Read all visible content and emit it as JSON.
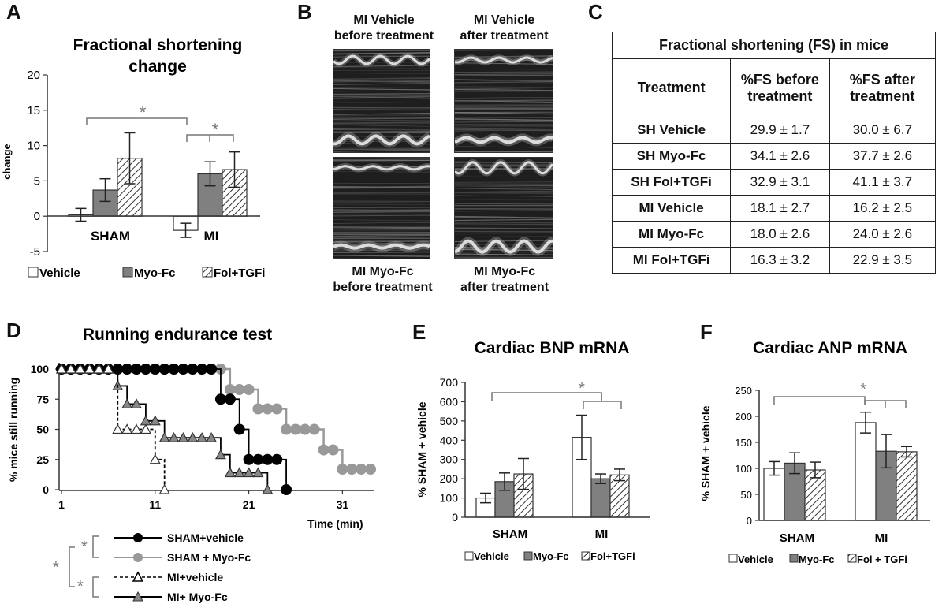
{
  "panel_letters": {
    "a": "A",
    "b": "B",
    "c": "C",
    "d": "D",
    "e": "E",
    "f": "F"
  },
  "panel_a": {
    "title_line1": "Fractional shortening",
    "title_line2": "change",
    "ylabel": "change",
    "yticks": [
      "20",
      "15",
      "10",
      "5",
      "0",
      "-5"
    ],
    "group_labels": [
      "SHAM",
      "MI"
    ],
    "legend": [
      "Vehicle",
      "Myo-Fc",
      "Fol+TGFi"
    ],
    "sig": [
      "*",
      "*"
    ]
  },
  "panel_b": {
    "captions": {
      "tl_1": "MI Vehicle",
      "tl_2": "before treatment",
      "tr_1": "MI Vehicle",
      "tr_2": "after treatment",
      "bl_1": "MI Myo-Fc",
      "bl_2": "before treatment",
      "br_1": "MI Myo-Fc",
      "br_2": "after treatment"
    }
  },
  "panel_c": {
    "title": "Fractional shortening (FS) in mice",
    "headers": [
      "Treatment",
      "%FS before treatment",
      "%FS after treatment"
    ],
    "rows": [
      [
        "SH Vehicle",
        "29.9 ± 1.7",
        "30.0 ± 6.7"
      ],
      [
        "SH Myo-Fc",
        "34.1 ± 2.6",
        "37.7 ± 2.6"
      ],
      [
        "SH Fol+TGFi",
        "32.9 ± 3.1",
        "41.1 ± 3.7"
      ],
      [
        "MI Vehicle",
        "18.1 ± 2.7",
        "16.2 ± 2.5"
      ],
      [
        "MI Myo-Fc",
        "18.0 ± 2.6",
        "24.0 ± 2.6"
      ],
      [
        "MI Fol+TGFi",
        "16.3 ± 3.2",
        "22.9 ± 3.5"
      ]
    ]
  },
  "panel_d": {
    "title": "Running endurance test",
    "ylabel": "% mice still running",
    "xlabel": "Time (min)",
    "yticks": [
      "100",
      "75",
      "50",
      "25",
      "0"
    ],
    "xticks": [
      "1",
      "11",
      "21",
      "31"
    ],
    "legend": [
      "SHAM+vehicle",
      "SHAM + Myo-Fc",
      "MI+vehicle",
      "MI+ Myo-Fc"
    ],
    "sig": [
      "*",
      "*",
      "*"
    ]
  },
  "panel_e": {
    "title": "Cardiac BNP mRNA",
    "ylabel": "% SHAM + vehicle",
    "yticks": [
      "700",
      "600",
      "500",
      "400",
      "300",
      "200",
      "100",
      "0"
    ],
    "group_labels": [
      "SHAM",
      "MI"
    ],
    "legend": [
      "Vehicle",
      "Myo-Fc",
      "Fol+TGFi"
    ],
    "sig": [
      "*"
    ]
  },
  "panel_f": {
    "title": "Cardiac ANP mRNA",
    "ylabel": "% SHAM + vehicle",
    "yticks": [
      "250",
      "200",
      "150",
      "100",
      "50",
      "0"
    ],
    "group_labels": [
      "SHAM",
      "MI"
    ],
    "legend": [
      "Vehicle",
      "Myo-Fc",
      "Fol + TGFi"
    ],
    "sig": [
      "*"
    ]
  },
  "colors": {
    "vehicle": "#ffffff",
    "myofc": "#808080",
    "hatch": "#333333",
    "sham_vehicle": "#000000",
    "sham_myofc": "#999999",
    "mi_line": "#555555"
  },
  "chart_data": [
    {
      "type": "bar",
      "title": "Fractional shortening change",
      "ylabel": "change",
      "categories": [
        "SHAM",
        "MI"
      ],
      "ylim": [
        -5,
        20
      ],
      "series": [
        {
          "name": "Vehicle",
          "values": [
            0.2,
            -2.0
          ],
          "errors": [
            0.9,
            1.0
          ]
        },
        {
          "name": "Myo-Fc",
          "values": [
            3.7,
            6.0
          ],
          "errors": [
            1.6,
            1.7
          ]
        },
        {
          "name": "Fol+TGFi",
          "values": [
            8.2,
            6.6
          ],
          "errors": [
            3.6,
            2.5
          ]
        }
      ]
    },
    {
      "type": "line",
      "title": "Running endurance test",
      "xlabel": "Time (min)",
      "ylabel": "% mice still running",
      "xlim": [
        1,
        35
      ],
      "ylim": [
        0,
        100
      ],
      "series": [
        {
          "name": "SHAM+vehicle",
          "style": "solid-black-circle",
          "x": [
            1,
            2,
            3,
            4,
            5,
            6,
            7,
            8,
            9,
            10,
            11,
            12,
            13,
            14,
            15,
            16,
            17,
            18,
            19,
            20,
            21,
            22,
            23,
            24,
            25
          ],
          "y": [
            100,
            100,
            100,
            100,
            100,
            100,
            100,
            100,
            100,
            100,
            100,
            100,
            100,
            100,
            100,
            100,
            100,
            75,
            75,
            50,
            25,
            25,
            25,
            25,
            0
          ]
        },
        {
          "name": "SHAM + Myo-Fc",
          "style": "solid-gray-circle",
          "x": [
            1,
            2,
            3,
            4,
            5,
            6,
            7,
            8,
            9,
            10,
            11,
            12,
            13,
            14,
            15,
            16,
            17,
            18,
            19,
            20,
            21,
            22,
            23,
            24,
            25,
            26,
            27,
            28,
            29,
            30,
            31,
            32,
            33,
            34
          ],
          "y": [
            100,
            100,
            100,
            100,
            100,
            100,
            100,
            100,
            100,
            100,
            100,
            100,
            100,
            100,
            100,
            100,
            100,
            100,
            83,
            83,
            83,
            67,
            67,
            67,
            50,
            50,
            50,
            50,
            33,
            33,
            17,
            17,
            17,
            17
          ]
        },
        {
          "name": "MI+vehicle",
          "style": "dashed-open-triangle",
          "x": [
            1,
            2,
            3,
            4,
            5,
            6,
            7,
            8,
            9,
            10,
            11,
            12
          ],
          "y": [
            100,
            100,
            100,
            100,
            100,
            100,
            50,
            50,
            50,
            50,
            25,
            0
          ]
        },
        {
          "name": "MI+ Myo-Fc",
          "style": "solid-gray-triangle",
          "x": [
            1,
            2,
            3,
            4,
            5,
            6,
            7,
            8,
            9,
            10,
            11,
            12,
            13,
            14,
            15,
            16,
            17,
            18,
            19,
            20,
            21,
            22,
            23
          ],
          "y": [
            100,
            100,
            100,
            100,
            100,
            100,
            86,
            71,
            71,
            57,
            57,
            43,
            43,
            43,
            43,
            43,
            43,
            29,
            14,
            14,
            14,
            14,
            0
          ]
        }
      ]
    },
    {
      "type": "bar",
      "title": "Cardiac BNP mRNA",
      "ylabel": "% SHAM + vehicle",
      "categories": [
        "SHAM",
        "MI"
      ],
      "ylim": [
        0,
        700
      ],
      "series": [
        {
          "name": "Vehicle",
          "values": [
            100,
            415
          ],
          "errors": [
            25,
            115
          ]
        },
        {
          "name": "Myo-Fc",
          "values": [
            185,
            200
          ],
          "errors": [
            45,
            25
          ]
        },
        {
          "name": "Fol+TGFi",
          "values": [
            225,
            220
          ],
          "errors": [
            80,
            30
          ]
        }
      ]
    },
    {
      "type": "bar",
      "title": "Cardiac ANP mRNA",
      "ylabel": "% SHAM + vehicle",
      "categories": [
        "SHAM",
        "MI"
      ],
      "ylim": [
        0,
        250
      ],
      "series": [
        {
          "name": "Vehicle",
          "values": [
            100,
            188
          ],
          "errors": [
            13,
            20
          ]
        },
        {
          "name": "Myo-Fc",
          "values": [
            110,
            133
          ],
          "errors": [
            20,
            32
          ]
        },
        {
          "name": "Fol + TGFi",
          "values": [
            97,
            132
          ],
          "errors": [
            15,
            10
          ]
        }
      ]
    }
  ]
}
